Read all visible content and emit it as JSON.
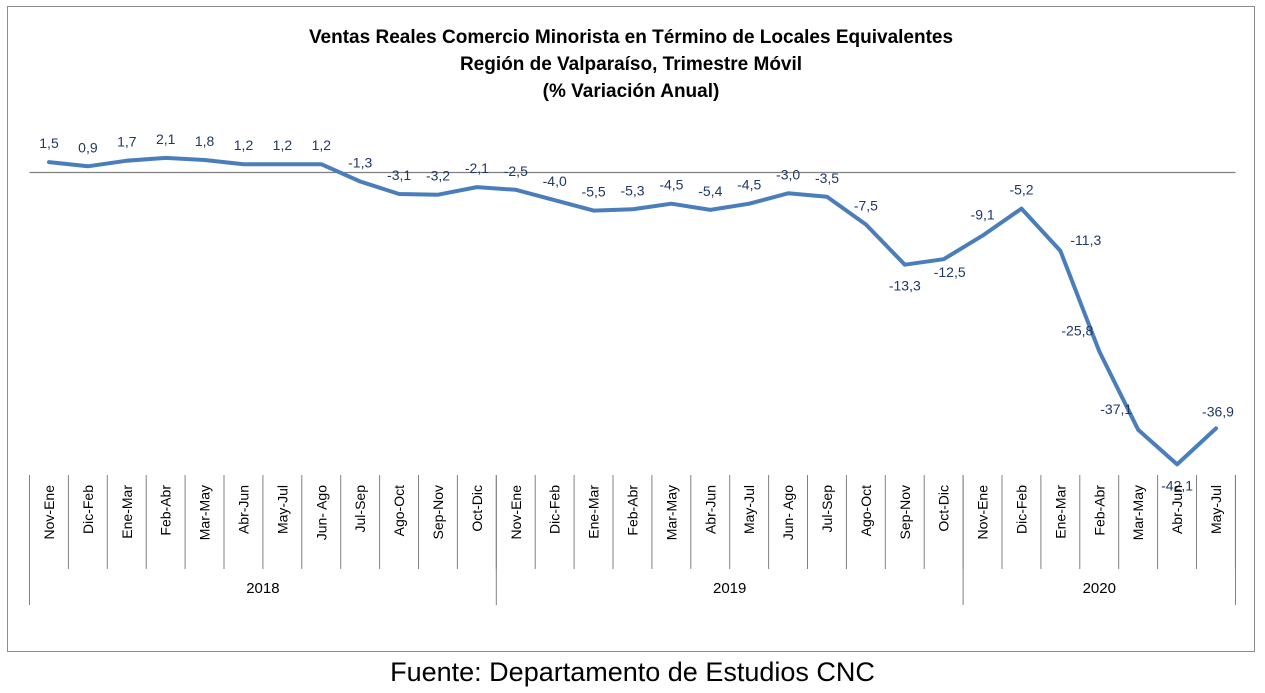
{
  "source_note": "Fuente: Departamento de Estudios CNC",
  "chart_data": {
    "type": "line",
    "title_lines": [
      "Ventas Reales Comercio Minorista  en Término de Locales Equivalentes",
      "Región de Valparaíso, Trimestre Móvil",
      "(% Variación Anual)"
    ],
    "xlabel": "",
    "ylabel": "",
    "ylim": [
      -45,
      3
    ],
    "grid": false,
    "legend": "none",
    "line_color": "#4a7ebb",
    "label_color": "#1f3864",
    "categories": [
      "Nov-Ene",
      "Dic-Feb",
      "Ene-Mar",
      "Feb-Abr",
      "Mar-May",
      "Abr-Jun",
      "May-Jul",
      "Jun- Ago",
      "Jul-Sep",
      "Ago-Oct",
      "Sep-Nov",
      "Oct-Dic",
      "Nov-Ene",
      "Dic-Feb",
      "Ene-Mar",
      "Feb-Abr",
      "Mar-May",
      "Abr-Jun",
      "May-Jul",
      "Jun- Ago",
      "Jul-Sep",
      "Ago-Oct",
      "Sep-Nov",
      "Oct-Dic",
      "Nov-Ene",
      "Dic-Feb",
      "Ene-Mar",
      "Feb-Abr",
      "Mar-May",
      "Abr-Jun",
      "May-Jul"
    ],
    "year_groups": [
      {
        "label": "2018",
        "start": 0,
        "end": 11
      },
      {
        "label": "2019",
        "start": 12,
        "end": 23
      },
      {
        "label": "2020",
        "start": 24,
        "end": 30
      }
    ],
    "values": [
      1.5,
      0.9,
      1.7,
      2.1,
      1.8,
      1.2,
      1.2,
      1.2,
      -1.3,
      -3.1,
      -3.2,
      -2.1,
      -2.5,
      -4.0,
      -5.5,
      -5.3,
      -4.5,
      -5.4,
      -4.5,
      -3.0,
      -3.5,
      -7.5,
      -13.3,
      -12.5,
      -9.1,
      -5.2,
      -11.3,
      -25.8,
      -37.1,
      -42.1,
      -36.9
    ],
    "value_labels": [
      "1,5",
      "0,9",
      "1,7",
      "2,1",
      "1,8",
      "1,2",
      "1,2",
      "1,2",
      "-1,3",
      "-3,1",
      "-3,2",
      "-2,1",
      "-2,5",
      "-4,0",
      "-5,5",
      "-5,3",
      "-4,5",
      "-5,4",
      "-4,5",
      "-3,0",
      "-3,5",
      "-7,5",
      "-13,3",
      "-12,5",
      "-9,1",
      "-5,2",
      "-11,3",
      "-25,8",
      "-37,1",
      "-42,1",
      "-36,9"
    ]
  }
}
